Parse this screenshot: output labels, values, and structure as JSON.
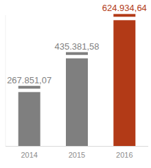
{
  "chart_data": {
    "type": "bar",
    "categories": [
      "2014",
      "2015",
      "2016"
    ],
    "values": [
      267851.07,
      435381.58,
      624934.64
    ],
    "value_labels": [
      "267.851,07",
      "435.381,58",
      "624.934,64"
    ],
    "colors": [
      "#7f7f7f",
      "#7f7f7f",
      "#b23a17"
    ],
    "ylim": [
      0,
      650000
    ],
    "data_labels": true,
    "tick_labels": "x",
    "grid": false
  }
}
